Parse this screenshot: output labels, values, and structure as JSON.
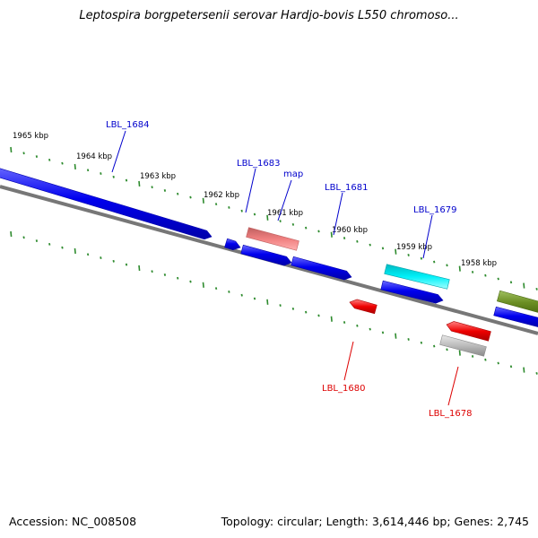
{
  "title": "Leptospira borgpetersenii serovar Hardjo-bovis L550 chromoso...",
  "footer": {
    "accession": "Accession: NC_008508",
    "topology": "Topology: circular; Length: 3,614,446 bp; Genes: 2,745"
  },
  "colors": {
    "backbone": "#777777",
    "tick": "#2e8b2e",
    "forward_label": "#0000cc",
    "reverse_label": "#dd0000",
    "blue_gene": "#0000ee",
    "pink_gene": "#f08080",
    "cyan_gene": "#00e5ee",
    "olive_gene": "#6b8e23",
    "red_gene": "#ee0000",
    "gray_gene": "#bbbbbb"
  },
  "scale_labels": [
    "1965 kbp",
    "1964 kbp",
    "1963 kbp",
    "1962 kbp",
    "1961 kbp",
    "1960 kbp",
    "1959 kbp",
    "1958 kbp"
  ],
  "gene_labels": {
    "forward": [
      "LBL_1684",
      "LBL_1683",
      "map",
      "LBL_1681",
      "LBL_1679"
    ],
    "reverse": [
      "LBL_1680",
      "LBL_1678"
    ]
  }
}
